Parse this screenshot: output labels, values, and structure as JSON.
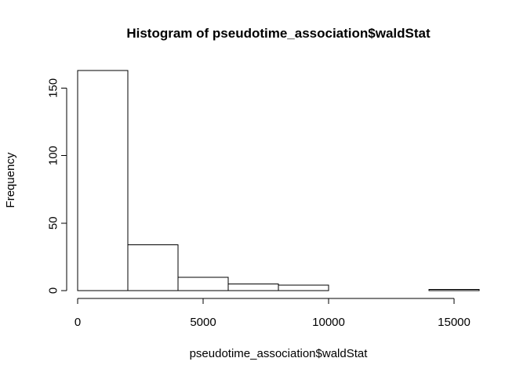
{
  "chart_data": {
    "type": "bar",
    "title": "Histogram of pseudotime_association$waldStat",
    "xlabel": "pseudotime_association$waldStat",
    "ylabel": "Frequency",
    "bins": [
      {
        "start": 0,
        "end": 2000,
        "count": 163
      },
      {
        "start": 2000,
        "end": 4000,
        "count": 34
      },
      {
        "start": 4000,
        "end": 6000,
        "count": 10
      },
      {
        "start": 6000,
        "end": 8000,
        "count": 5
      },
      {
        "start": 8000,
        "end": 10000,
        "count": 4
      },
      {
        "start": 10000,
        "end": 12000,
        "count": 0
      },
      {
        "start": 12000,
        "end": 14000,
        "count": 0
      },
      {
        "start": 14000,
        "end": 16000,
        "count": 1
      }
    ],
    "xlim": [
      0,
      16000
    ],
    "ylim": [
      0,
      163
    ],
    "x_ticks": [
      0,
      5000,
      10000,
      15000
    ],
    "y_ticks": [
      0,
      50,
      100,
      150
    ],
    "grid": false,
    "bar_fill": "#ffffff",
    "bar_stroke": "#000000"
  }
}
